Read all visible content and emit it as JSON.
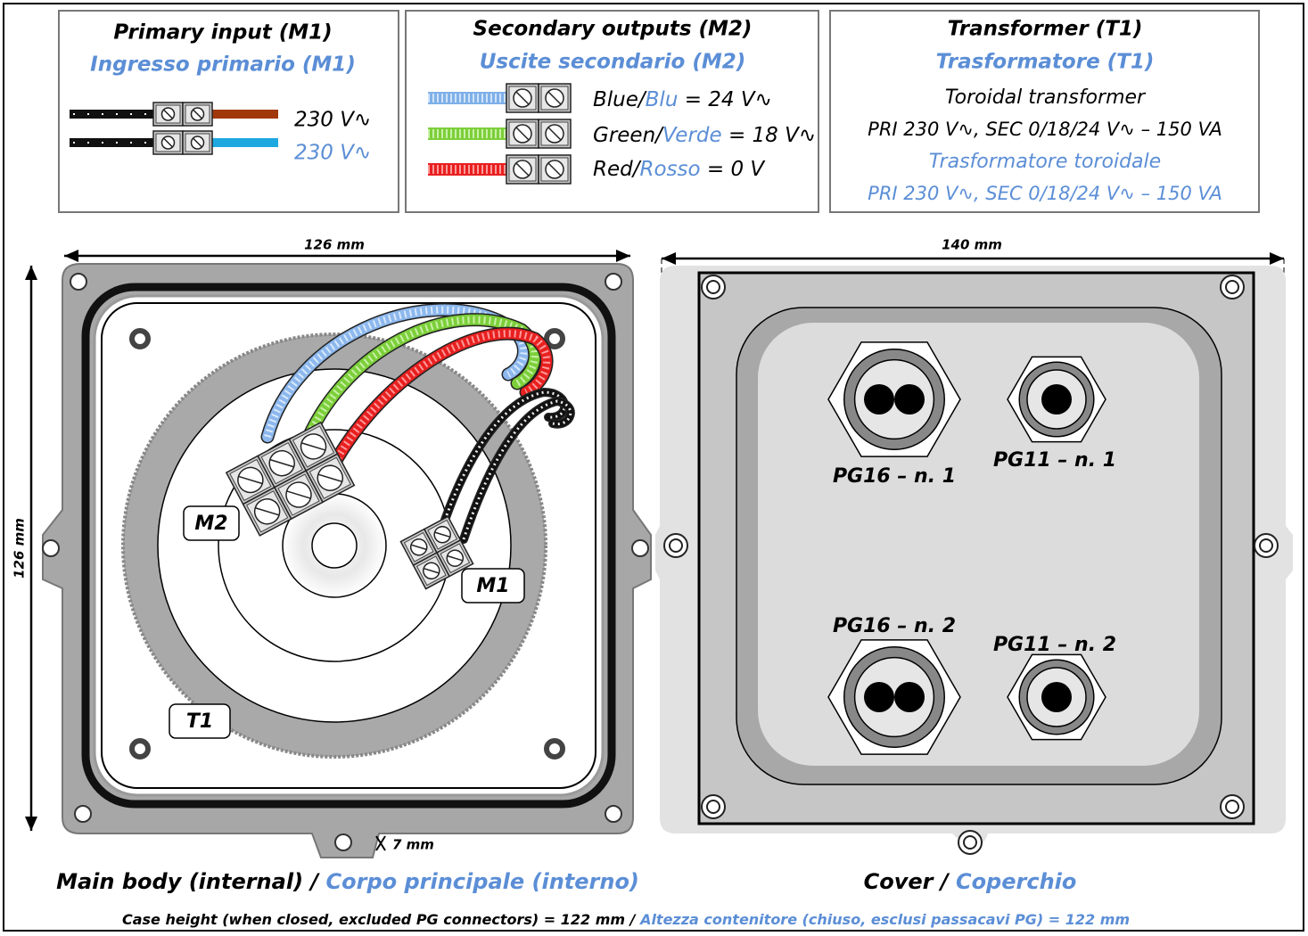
{
  "boxes": [
    {
      "title": "Primary input (M1)",
      "subtitle": "Ingresso primario (M1)",
      "lines": [
        "230 V∿",
        "230 V∿"
      ]
    },
    {
      "title": "Secondary outputs (M2)",
      "subtitle": "Uscite secondario (M2)",
      "lines": [
        {
          "en": "Blue/",
          "it": "Blu",
          "rest": " = 24 V∿"
        },
        {
          "en": "Green/",
          "it": "Verde",
          "rest": " = 18 V∿"
        },
        {
          "en": "Red/",
          "it": "Rosso",
          "rest": " = 0 V"
        }
      ]
    },
    {
      "title": "Transformer (T1)",
      "subtitle": "Trasformatore (T1)",
      "lines": [
        "Toroidal transformer",
        "PRI 230 V∿, SEC 0/18/24 V∿ – 150 VA",
        "Trasformatore toroidale",
        "PRI 230 V∿, SEC 0/18/24 V∿ – 150 VA"
      ]
    }
  ],
  "dimensions": {
    "body_width": "126 mm",
    "cover_width": "140 mm",
    "body_height": "126 mm",
    "tab": "7 mm"
  },
  "labels": {
    "m2": "M2",
    "m1": "M1",
    "t1": "T1"
  },
  "glands": [
    "PG16 – n. 1",
    "PG11 – n. 1",
    "PG16 – n. 2",
    "PG11 – n. 2"
  ],
  "captions": {
    "body": {
      "en": "Main body (internal) / ",
      "it": "Corpo principale (interno)"
    },
    "cover": {
      "en": "Cover / ",
      "it": "Coperchio"
    },
    "footer": {
      "en": "Case height (when closed, excluded PG connectors) = 122 mm / ",
      "it": "Altezza contenitore (chiuso, esclusi passacavi PG) = 122 mm"
    }
  }
}
